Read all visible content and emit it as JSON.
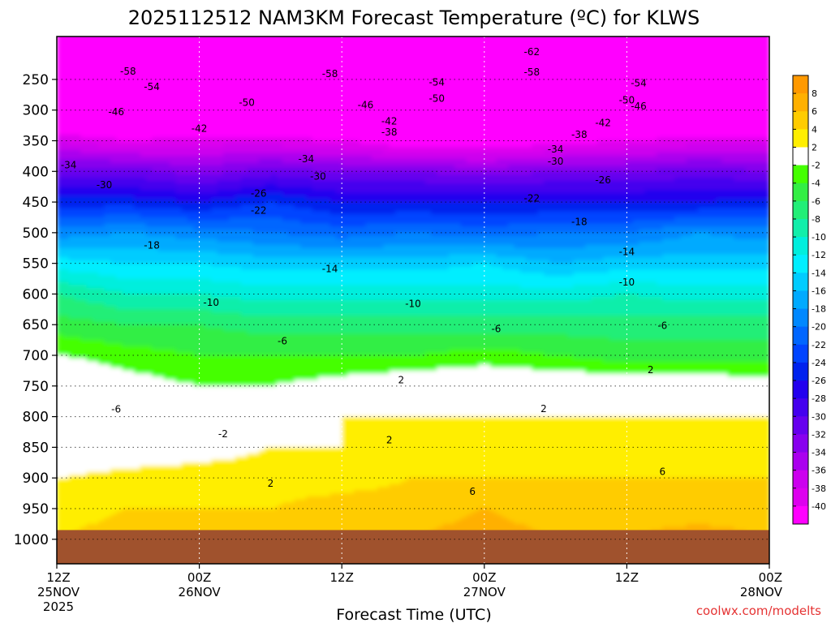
{
  "chart_data": {
    "type": "heatmap",
    "title": "2025112512 NAM3KM Forecast Temperature (ºC) for KLWS",
    "xlabel": "Forecast Time (UTC)",
    "ylabel": "",
    "x_ticks": [
      {
        "hour": 0,
        "lines": [
          "12Z",
          "25NOV",
          "2025"
        ]
      },
      {
        "hour": 12,
        "lines": [
          "00Z",
          "26NOV"
        ]
      },
      {
        "hour": 24,
        "lines": [
          "12Z"
        ]
      },
      {
        "hour": 36,
        "lines": [
          "00Z",
          "27NOV"
        ]
      },
      {
        "hour": 48,
        "lines": [
          "12Z"
        ]
      },
      {
        "hour": 60,
        "lines": [
          "00Z",
          "28NOV"
        ]
      }
    ],
    "xlim": [
      0,
      60
    ],
    "y_pressure_top": 180,
    "y_pressure_bottom": 1040,
    "y_ticks": [
      250,
      300,
      350,
      400,
      450,
      500,
      550,
      600,
      650,
      700,
      750,
      800,
      850,
      900,
      950,
      1000
    ],
    "surface_pressure": 985,
    "colorbar": {
      "labels": [
        "8",
        "6",
        "4",
        "2",
        "-2",
        "-4",
        "-6",
        "-8",
        "-10",
        "-12",
        "-14",
        "-16",
        "-18",
        "-20",
        "-22",
        "-24",
        "-26",
        "-28",
        "-30",
        "-32",
        "-34",
        "-36",
        "-38",
        "-40"
      ],
      "bands": [
        {
          "lo": 8,
          "hi": 10,
          "color": "#ff9900"
        },
        {
          "lo": 6,
          "hi": 8,
          "color": "#ffb000"
        },
        {
          "lo": 4,
          "hi": 6,
          "color": "#ffcc00"
        },
        {
          "lo": 2,
          "hi": 4,
          "color": "#ffee00"
        },
        {
          "lo": -2,
          "hi": 2,
          "color": "#ffffff"
        },
        {
          "lo": -4,
          "hi": -2,
          "color": "#44ff00"
        },
        {
          "lo": -6,
          "hi": -4,
          "color": "#33ee44"
        },
        {
          "lo": -8,
          "hi": -6,
          "color": "#22ee77"
        },
        {
          "lo": -10,
          "hi": -8,
          "color": "#11eeaa"
        },
        {
          "lo": -12,
          "hi": -10,
          "color": "#00eedd"
        },
        {
          "lo": -14,
          "hi": -12,
          "color": "#00eeff"
        },
        {
          "lo": -16,
          "hi": -14,
          "color": "#00ccff"
        },
        {
          "lo": -18,
          "hi": -16,
          "color": "#00aaff"
        },
        {
          "lo": -20,
          "hi": -18,
          "color": "#0088ff"
        },
        {
          "lo": -22,
          "hi": -20,
          "color": "#0066ff"
        },
        {
          "lo": -24,
          "hi": -22,
          "color": "#0044ff"
        },
        {
          "lo": -26,
          "hi": -24,
          "color": "#0022ee"
        },
        {
          "lo": -28,
          "hi": -26,
          "color": "#2200ee"
        },
        {
          "lo": -30,
          "hi": -28,
          "color": "#4400ee"
        },
        {
          "lo": -32,
          "hi": -30,
          "color": "#6600ee"
        },
        {
          "lo": -34,
          "hi": -32,
          "color": "#8800ee"
        },
        {
          "lo": -36,
          "hi": -34,
          "color": "#aa00ee"
        },
        {
          "lo": -38,
          "hi": -36,
          "color": "#cc00ee"
        },
        {
          "lo": -40,
          "hi": -38,
          "color": "#dd00ee"
        },
        {
          "lo": -99,
          "hi": -40,
          "color": "#ff00ff"
        }
      ]
    },
    "ground_color": "#a0522d",
    "freezing_line_color": "#ff0080",
    "profile_hours": [
      0,
      6,
      12,
      18,
      24,
      30,
      36,
      42,
      48,
      54,
      60
    ],
    "profile_levels": [
      200,
      250,
      300,
      350,
      400,
      450,
      500,
      550,
      600,
      650,
      700,
      750,
      800,
      850,
      900,
      950,
      1000
    ],
    "temperature_profiles": [
      [
        -60,
        -56,
        -48,
        -38,
        -31,
        -25,
        -19,
        -13,
        -8,
        -5,
        -2,
        1,
        0,
        -1,
        2,
        3,
        4
      ],
      [
        -60,
        -55,
        -47,
        -40,
        -31,
        -25,
        -18,
        -14,
        -10,
        -6,
        -3,
        -1,
        0,
        0,
        3,
        4,
        5
      ],
      [
        -61,
        -56,
        -47,
        -39,
        -33,
        -26,
        -19,
        -14,
        -10,
        -6,
        -4,
        -2,
        0,
        1,
        3,
        4,
        5
      ],
      [
        -61,
        -55,
        -48,
        -39,
        -31,
        -24,
        -20,
        -15,
        -11,
        -7,
        -4,
        -2,
        1,
        2,
        3,
        4,
        6
      ],
      [
        -62,
        -56,
        -49,
        -40,
        -32,
        -26,
        -21,
        -15,
        -11,
        -7,
        -4,
        -1,
        2,
        2,
        3,
        5,
        6
      ],
      [
        -61,
        -56,
        -49,
        -42,
        -32,
        -26,
        -20,
        -15,
        -11,
        -7,
        -4,
        0,
        2,
        3,
        4,
        5,
        6
      ],
      [
        -62,
        -56,
        -50,
        -42,
        -33,
        -26,
        -21,
        -14,
        -11,
        -7,
        -3,
        0,
        2,
        3,
        4,
        6,
        7
      ],
      [
        -62,
        -56,
        -49,
        -41,
        -32,
        -26,
        -20,
        -16,
        -11,
        -7,
        -4,
        0,
        2,
        3,
        4,
        5,
        6
      ],
      [
        -62,
        -56,
        -49,
        -40,
        -32,
        -26,
        -20,
        -15,
        -10,
        -7,
        -5,
        0,
        2,
        3,
        4,
        5,
        6
      ],
      [
        -62,
        -56,
        -48,
        -39,
        -31,
        -26,
        -18,
        -15,
        -11,
        -7,
        -5,
        0,
        2,
        3,
        4,
        5,
        7
      ],
      [
        -61,
        -55,
        -48,
        -39,
        -32,
        -25,
        -19,
        -15,
        -11,
        -7,
        -5,
        -1,
        2,
        3,
        4,
        5,
        6
      ]
    ],
    "contour_labels": [
      {
        "text": "-62",
        "hour": 40,
        "p": 205
      },
      {
        "text": "-58",
        "hour": 6,
        "p": 237
      },
      {
        "text": "-58",
        "hour": 23,
        "p": 241
      },
      {
        "text": "-58",
        "hour": 40,
        "p": 238
      },
      {
        "text": "-54",
        "hour": 8,
        "p": 262
      },
      {
        "text": "-54",
        "hour": 32,
        "p": 255
      },
      {
        "text": "-54",
        "hour": 49,
        "p": 256
      },
      {
        "text": "-50",
        "hour": 16,
        "p": 288
      },
      {
        "text": "-50",
        "hour": 32,
        "p": 281
      },
      {
        "text": "-50",
        "hour": 48,
        "p": 284
      },
      {
        "text": "-46",
        "hour": 5,
        "p": 303
      },
      {
        "text": "-46",
        "hour": 26,
        "p": 292
      },
      {
        "text": "-46",
        "hour": 49,
        "p": 294
      },
      {
        "text": "-42",
        "hour": 12,
        "p": 330
      },
      {
        "text": "-42",
        "hour": 28,
        "p": 318
      },
      {
        "text": "-42",
        "hour": 46,
        "p": 321
      },
      {
        "text": "-38",
        "hour": 28,
        "p": 336
      },
      {
        "text": "-38",
        "hour": 44,
        "p": 340
      },
      {
        "text": "-34",
        "hour": 1,
        "p": 390
      },
      {
        "text": "-34",
        "hour": 21,
        "p": 380
      },
      {
        "text": "-34",
        "hour": 42,
        "p": 364
      },
      {
        "text": "-30",
        "hour": 4,
        "p": 422
      },
      {
        "text": "-30",
        "hour": 22,
        "p": 408
      },
      {
        "text": "-30",
        "hour": 42,
        "p": 384
      },
      {
        "text": "-26",
        "hour": 17,
        "p": 436
      },
      {
        "text": "-26",
        "hour": 46,
        "p": 414
      },
      {
        "text": "-22",
        "hour": 17,
        "p": 464
      },
      {
        "text": "-22",
        "hour": 40,
        "p": 444
      },
      {
        "text": "-18",
        "hour": 8,
        "p": 521
      },
      {
        "text": "-18",
        "hour": 44,
        "p": 482
      },
      {
        "text": "-14",
        "hour": 23,
        "p": 559
      },
      {
        "text": "-14",
        "hour": 48,
        "p": 531
      },
      {
        "text": "-10",
        "hour": 13,
        "p": 614
      },
      {
        "text": "-10",
        "hour": 30,
        "p": 616
      },
      {
        "text": "-10",
        "hour": 48,
        "p": 581
      },
      {
        "text": "-6",
        "hour": 5,
        "p": 788
      },
      {
        "text": "-6",
        "hour": 19,
        "p": 677
      },
      {
        "text": "-6",
        "hour": 37,
        "p": 657
      },
      {
        "text": "-6",
        "hour": 51,
        "p": 652
      },
      {
        "text": "2",
        "hour": 29,
        "p": 740
      },
      {
        "text": "2",
        "hour": 50,
        "p": 724
      },
      {
        "text": "-2",
        "hour": 14,
        "p": 828
      },
      {
        "text": "2",
        "hour": 28,
        "p": 838
      },
      {
        "text": "2",
        "hour": 41,
        "p": 787
      },
      {
        "text": "2",
        "hour": 18,
        "p": 909
      },
      {
        "text": "6",
        "hour": 35,
        "p": 922
      },
      {
        "text": "6",
        "hour": 51,
        "p": 890
      }
    ],
    "legend": "right",
    "grid": true
  },
  "credit": "coolwx.com/modelts"
}
